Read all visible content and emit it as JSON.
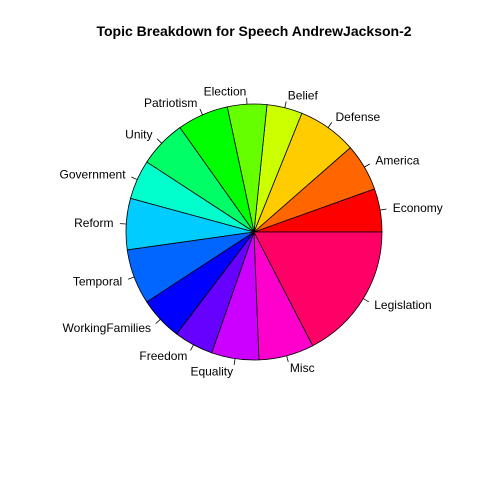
{
  "chart_data": {
    "type": "pie",
    "title": "Topic Breakdown for Speech AndrewJackson-2",
    "start_angle_deg": 0,
    "direction": "counterclockwise",
    "slices": [
      {
        "label": "Economy",
        "value": 5.5,
        "color": "#FF0000"
      },
      {
        "label": "America",
        "value": 6.0,
        "color": "#FF6600"
      },
      {
        "label": "Defense",
        "value": 7.5,
        "color": "#FFCC00"
      },
      {
        "label": "Belief",
        "value": 4.5,
        "color": "#CCFF00"
      },
      {
        "label": "Election",
        "value": 5.0,
        "color": "#66FF00"
      },
      {
        "label": "Patriotism",
        "value": 6.5,
        "color": "#00FF00"
      },
      {
        "label": "Unity",
        "value": 6.0,
        "color": "#00FF66"
      },
      {
        "label": "Government",
        "value": 5.0,
        "color": "#00FFCC"
      },
      {
        "label": "Reform",
        "value": 6.5,
        "color": "#00CCFF"
      },
      {
        "label": "Temporal",
        "value": 7.0,
        "color": "#0066FF"
      },
      {
        "label": "WorkingFamilies",
        "value": 5.5,
        "color": "#0000FF"
      },
      {
        "label": "Freedom",
        "value": 5.0,
        "color": "#6600FF"
      },
      {
        "label": "Equality",
        "value": 6.0,
        "color": "#CC00FF"
      },
      {
        "label": "Misc",
        "value": 7.0,
        "color": "#FF00CC"
      },
      {
        "label": "Legislation",
        "value": 17.5,
        "color": "#FF0066"
      }
    ]
  }
}
